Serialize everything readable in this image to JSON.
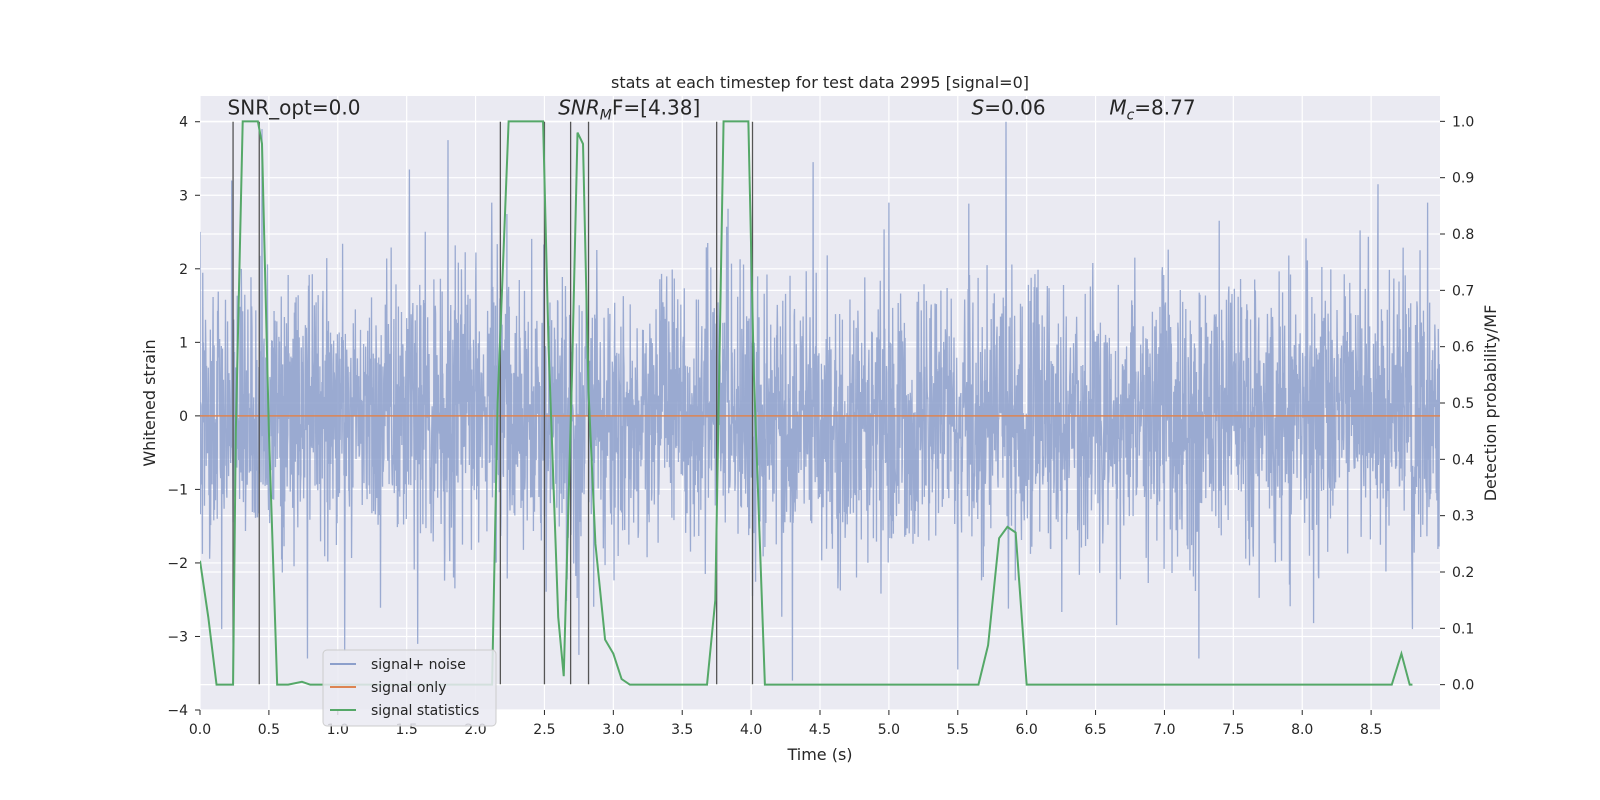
{
  "chart_data": {
    "type": "line",
    "title": "stats at each timestep for test data 2995 [signal=0]",
    "xlabel": "Time (s)",
    "ylabel_left": "Whitened strain",
    "ylabel_right": "Detection probability/MF",
    "xlim": [
      0.0,
      9.0
    ],
    "ylim_left": [
      -4.0,
      4.35
    ],
    "ylim_right": [
      -0.045,
      1.045
    ],
    "x_ticks": [
      0.0,
      0.5,
      1.0,
      1.5,
      2.0,
      2.5,
      3.0,
      3.5,
      4.0,
      4.5,
      5.0,
      5.5,
      6.0,
      6.5,
      7.0,
      7.5,
      8.0,
      8.5
    ],
    "x_tick_labels": [
      "0.0",
      "0.5",
      "1.0",
      "1.5",
      "2.0",
      "2.5",
      "3.0",
      "3.5",
      "4.0",
      "4.5",
      "5.0",
      "5.5",
      "6.0",
      "6.5",
      "7.0",
      "7.5",
      "8.0",
      "8.5"
    ],
    "y_left_ticks": [
      -4,
      -3,
      -2,
      -1,
      0,
      1,
      2,
      3,
      4
    ],
    "y_left_tick_labels": [
      "−4",
      "−3",
      "−2",
      "−1",
      "0",
      "1",
      "2",
      "3",
      "4"
    ],
    "y_right_ticks": [
      0.0,
      0.1,
      0.2,
      0.3,
      0.4,
      0.5,
      0.6,
      0.7,
      0.8,
      0.9,
      1.0
    ],
    "y_right_tick_labels": [
      "0.0",
      "0.1",
      "0.2",
      "0.3",
      "0.4",
      "0.5",
      "0.6",
      "0.7",
      "0.8",
      "0.9",
      "1.0"
    ],
    "grid": true,
    "legend_position": "lower-left",
    "series": [
      {
        "name": "signal+ noise",
        "color": "#8c9fcb",
        "axis": "left",
        "description_values": "dense noise, approx. ±1.7 typical, peaks to ±4",
        "spikes": [
          {
            "x": 0.23,
            "y": 3.2
          },
          {
            "x": 0.45,
            "y": 3.9
          },
          {
            "x": 1.52,
            "y": 3.35
          },
          {
            "x": 1.8,
            "y": 3.75
          },
          {
            "x": 4.45,
            "y": 3.45
          },
          {
            "x": 5.85,
            "y": 4.0
          },
          {
            "x": 8.55,
            "y": 3.15
          },
          {
            "x": 0.78,
            "y": -3.3
          },
          {
            "x": 1.05,
            "y": -3.2
          },
          {
            "x": 1.58,
            "y": -3.1
          },
          {
            "x": 2.75,
            "y": -3.25
          },
          {
            "x": 4.3,
            "y": -3.6
          },
          {
            "x": 5.5,
            "y": -3.45
          },
          {
            "x": 7.25,
            "y": -3.3
          },
          {
            "x": 8.8,
            "y": -2.9
          }
        ]
      },
      {
        "name": "signal only",
        "color": "#dd8452",
        "axis": "left",
        "x": [
          0.0,
          9.0
        ],
        "y": [
          0.0,
          0.0
        ]
      },
      {
        "name": "signal statistics",
        "color": "#55a868",
        "axis": "right",
        "x": [
          0.0,
          0.06,
          0.12,
          0.24,
          0.26,
          0.31,
          0.42,
          0.45,
          0.5,
          0.56,
          0.64,
          0.74,
          0.8,
          0.9,
          2.12,
          2.16,
          2.24,
          2.49,
          2.53,
          2.6,
          2.64,
          2.7,
          2.74,
          2.78,
          2.82,
          2.87,
          2.94,
          3.0,
          3.06,
          3.12,
          3.68,
          3.74,
          3.8,
          3.98,
          4.02,
          4.1,
          4.18,
          5.65,
          5.72,
          5.8,
          5.86,
          5.92,
          6.0,
          6.05,
          8.65,
          8.72,
          8.78,
          8.8
        ],
        "y": [
          0.22,
          0.12,
          0.0,
          0.0,
          0.45,
          1.0,
          1.0,
          0.96,
          0.45,
          0.0,
          0.0,
          0.005,
          0.0,
          0.0,
          0.0,
          0.5,
          1.0,
          1.0,
          0.6,
          0.12,
          0.015,
          0.55,
          0.98,
          0.96,
          0.52,
          0.25,
          0.08,
          0.055,
          0.01,
          0.0,
          0.0,
          0.15,
          1.0,
          1.0,
          0.55,
          0.0,
          0.0,
          0.0,
          0.07,
          0.26,
          0.28,
          0.27,
          0.0,
          0.0,
          0.0,
          0.055,
          0.0,
          0.0
        ]
      }
    ],
    "vertical_lines": [
      {
        "x": 0.24,
        "y_from": -3.65,
        "y_to": 4.0
      },
      {
        "x": 0.43,
        "y_from": -3.65,
        "y_to": 4.0
      },
      {
        "x": 2.18,
        "y_from": -3.65,
        "y_to": 4.0
      },
      {
        "x": 2.5,
        "y_from": -3.65,
        "y_to": 4.0
      },
      {
        "x": 2.69,
        "y_from": -3.65,
        "y_to": 4.0
      },
      {
        "x": 2.82,
        "y_from": -3.65,
        "y_to": 4.0
      },
      {
        "x": 3.75,
        "y_from": -3.65,
        "y_to": 4.0
      },
      {
        "x": 4.01,
        "y_from": -3.65,
        "y_to": 4.0
      }
    ],
    "annotations": [
      {
        "text": "SNR_opt=0.0",
        "x": 0.2,
        "y": 4.1,
        "style": "plain"
      },
      {
        "text": "SNR",
        "sub": "M",
        "rest": "F=[4.38]",
        "x": 2.6,
        "y": 4.1,
        "style": "math"
      },
      {
        "text": "S",
        "sub": "",
        "rest": "=0.06",
        "x": 5.6,
        "y": 4.1,
        "style": "math"
      },
      {
        "text": "M",
        "sub": "c",
        "rest": "=8.77",
        "x": 6.6,
        "y": 4.1,
        "style": "math"
      }
    ]
  }
}
